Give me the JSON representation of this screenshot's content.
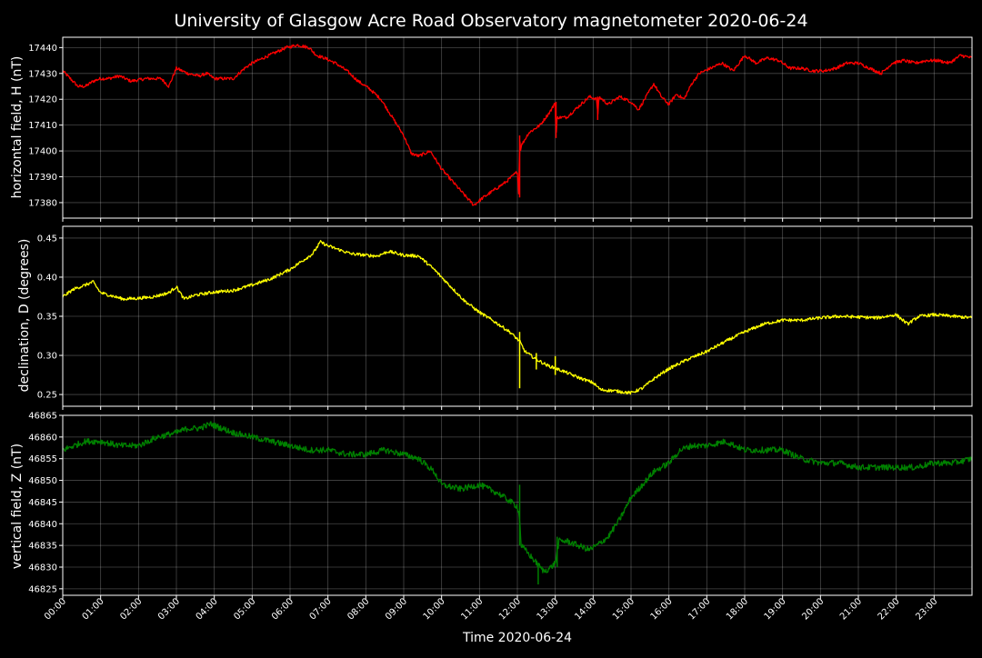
{
  "chart_data": {
    "type": "line",
    "title": "University of Glasgow Acre Road Observatory magnetometer 2020-06-24",
    "xlabel": "Time 2020-06-24",
    "x_ticks": [
      "00:00",
      "01:00",
      "02:00",
      "03:00",
      "04:00",
      "05:00",
      "06:00",
      "07:00",
      "08:00",
      "09:00",
      "10:00",
      "11:00",
      "12:00",
      "13:00",
      "14:00",
      "15:00",
      "16:00",
      "17:00",
      "18:00",
      "19:00",
      "20:00",
      "21:00",
      "22:00",
      "23:00"
    ],
    "xlim_hours": [
      0,
      24
    ],
    "grid": true,
    "panels": [
      {
        "name": "horizontal",
        "ylabel": "horizontal field, H (nT)",
        "color": "#ff0000",
        "ylim": [
          17374,
          17444
        ],
        "yticks": [
          17380,
          17390,
          17400,
          17410,
          17420,
          17430,
          17440
        ],
        "noise": 0.6,
        "x": [
          0,
          0.2,
          0.4,
          0.6,
          0.8,
          1.0,
          1.2,
          1.5,
          1.8,
          2.2,
          2.6,
          2.8,
          3.0,
          3.3,
          3.6,
          3.8,
          4.0,
          4.2,
          4.5,
          4.8,
          5.0,
          5.3,
          5.6,
          5.9,
          6.2,
          6.5,
          6.7,
          6.9,
          7.2,
          7.5,
          7.8,
          8.1,
          8.4,
          8.7,
          9.0,
          9.2,
          9.4,
          9.7,
          10.0,
          10.3,
          10.6,
          10.85,
          11.1,
          11.4,
          11.7,
          12.0,
          12.04,
          12.06,
          12.08,
          12.1,
          12.3,
          12.6,
          12.9,
          13.0,
          13.02,
          13.05,
          13.3,
          13.6,
          13.9,
          14.1,
          14.12,
          14.15,
          14.4,
          14.7,
          15.0,
          15.2,
          15.4,
          15.6,
          15.8,
          16.0,
          16.2,
          16.4,
          16.6,
          16.8,
          17.1,
          17.4,
          17.7,
          18.0,
          18.3,
          18.6,
          18.9,
          19.2,
          19.5,
          19.8,
          20.1,
          20.4,
          20.7,
          21.0,
          21.3,
          21.6,
          21.9,
          22.2,
          22.5,
          22.8,
          23.1,
          23.4,
          23.7,
          24.0
        ],
        "values": [
          17431,
          17428,
          17425,
          17425,
          17427,
          17428,
          17428,
          17429,
          17427,
          17428,
          17428,
          17425,
          17432,
          17430,
          17429,
          17430,
          17428,
          17428,
          17428,
          17432,
          17434,
          17436,
          17438,
          17440,
          17441,
          17440,
          17437,
          17436,
          17434,
          17431,
          17427,
          17424,
          17420,
          17413,
          17406,
          17399,
          17398,
          17400,
          17393,
          17388,
          17383,
          17379,
          17382,
          17385,
          17388,
          17392,
          17382,
          17406,
          17400,
          17402,
          17407,
          17410,
          17416,
          17419,
          17405,
          17413,
          17413,
          17417,
          17421,
          17420,
          17412,
          17421,
          17418,
          17421,
          17419,
          17416,
          17421,
          17426,
          17421,
          17418,
          17422,
          17420,
          17426,
          17430,
          17432,
          17434,
          17431,
          17437,
          17434,
          17436,
          17435,
          17432,
          17432,
          17431,
          17431,
          17432,
          17434,
          17434,
          17432,
          17430,
          17434,
          17435,
          17434,
          17435,
          17435,
          17434,
          17437,
          17436
        ],
        "spikes": [
          {
            "x": 12.06,
            "min": 17382,
            "max": 17406
          },
          {
            "x": 13.02,
            "min": 17405,
            "max": 17419
          },
          {
            "x": 14.12,
            "min": 17412,
            "max": 17421
          }
        ]
      },
      {
        "name": "declination",
        "ylabel": "declination, D (degrees)",
        "color": "#ffff00",
        "ylim": [
          0.235,
          0.465
        ],
        "yticks": [
          0.25,
          0.3,
          0.35,
          0.4,
          0.45
        ],
        "yticklabels": [
          "0.25",
          "0.30",
          "0.35",
          "0.40",
          "0.45"
        ],
        "noise": 0.002,
        "x": [
          0,
          0.3,
          0.6,
          0.8,
          1.0,
          1.3,
          1.6,
          2.0,
          2.4,
          2.8,
          3.0,
          3.2,
          3.5,
          4.0,
          4.5,
          5.0,
          5.5,
          6.0,
          6.3,
          6.6,
          6.8,
          7.0,
          7.3,
          7.6,
          8.0,
          8.3,
          8.6,
          9.0,
          9.4,
          9.8,
          10.2,
          10.6,
          11.0,
          11.4,
          11.8,
          12.06,
          12.2,
          12.5,
          12.8,
          13.2,
          13.6,
          14.0,
          14.2,
          14.5,
          15.0,
          15.3,
          15.6,
          16.0,
          16.5,
          17.0,
          17.5,
          18.0,
          18.5,
          19.0,
          19.5,
          20.0,
          20.5,
          21.0,
          21.5,
          22.0,
          22.3,
          22.6,
          23.0,
          23.5,
          24.0
        ],
        "values": [
          0.375,
          0.385,
          0.39,
          0.394,
          0.38,
          0.376,
          0.372,
          0.373,
          0.375,
          0.38,
          0.388,
          0.372,
          0.377,
          0.381,
          0.383,
          0.39,
          0.398,
          0.41,
          0.42,
          0.43,
          0.445,
          0.44,
          0.435,
          0.43,
          0.428,
          0.427,
          0.433,
          0.428,
          0.427,
          0.41,
          0.39,
          0.37,
          0.355,
          0.343,
          0.33,
          0.318,
          0.305,
          0.295,
          0.287,
          0.28,
          0.272,
          0.265,
          0.256,
          0.255,
          0.252,
          0.258,
          0.27,
          0.283,
          0.295,
          0.305,
          0.318,
          0.33,
          0.34,
          0.345,
          0.345,
          0.348,
          0.35,
          0.349,
          0.348,
          0.352,
          0.34,
          0.35,
          0.352,
          0.35,
          0.348
        ],
        "spikes": [
          {
            "x": 12.06,
            "min": 0.258,
            "max": 0.33
          },
          {
            "x": 12.5,
            "min": 0.282,
            "max": 0.303
          },
          {
            "x": 13.0,
            "min": 0.275,
            "max": 0.299
          }
        ]
      },
      {
        "name": "vertical",
        "ylabel": "vertical field, Z (nT)",
        "color": "#008000",
        "ylim": [
          46823.5,
          46865
        ],
        "yticks": [
          46825,
          46830,
          46835,
          46840,
          46845,
          46850,
          46855,
          46860,
          46865
        ],
        "noise": 0.7,
        "x": [
          0,
          0.3,
          0.6,
          1.0,
          1.5,
          2.0,
          2.5,
          3.0,
          3.3,
          3.6,
          3.9,
          4.2,
          4.5,
          5.0,
          5.5,
          6.0,
          6.5,
          7.0,
          7.5,
          8.0,
          8.5,
          9.0,
          9.4,
          9.8,
          10.0,
          10.5,
          11.0,
          11.5,
          12.0,
          12.05,
          12.1,
          12.3,
          12.5,
          12.7,
          12.9,
          13.0,
          13.1,
          13.3,
          13.6,
          13.9,
          14.1,
          14.4,
          14.7,
          15.0,
          15.3,
          15.6,
          16.0,
          16.3,
          16.6,
          17.0,
          17.5,
          18.0,
          18.5,
          19.0,
          19.5,
          20.0,
          20.5,
          21.0,
          21.5,
          22.0,
          22.5,
          23.0,
          23.5,
          24.0
        ],
        "values": [
          46857,
          46858,
          46859,
          46859,
          46858,
          46858,
          46860,
          46861,
          46862,
          46862,
          46863,
          46862,
          46861,
          46860,
          46859,
          46858,
          46857,
          46857,
          46856,
          46856,
          46857,
          46856,
          46855,
          46852,
          46849,
          46848,
          46849,
          46847,
          46844,
          46842,
          46835,
          46833,
          46831,
          46829,
          46830,
          46831,
          46836,
          46836,
          46835,
          46834,
          46835,
          46837,
          46841,
          46846,
          46849,
          46852,
          46854,
          46857,
          46858,
          46858,
          46859,
          46857,
          46857,
          46857,
          46855,
          46854,
          46854,
          46853,
          46853,
          46853,
          46853,
          46854,
          46854,
          46855
        ],
        "spikes": [
          {
            "x": 12.06,
            "min": 46835,
            "max": 46849
          },
          {
            "x": 12.55,
            "min": 46826,
            "max": 46831
          },
          {
            "x": 13.05,
            "min": 46830,
            "max": 46837
          }
        ]
      }
    ]
  }
}
